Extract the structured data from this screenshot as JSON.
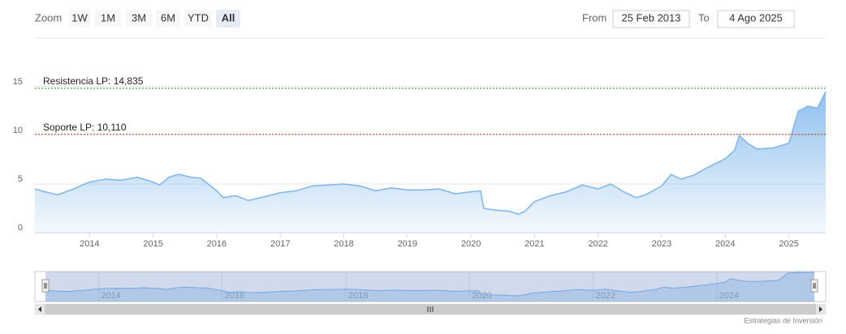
{
  "range_selector": {
    "zoom_label": "Zoom",
    "buttons": [
      "1W",
      "1M",
      "3M",
      "6M",
      "YTD",
      "All"
    ],
    "selected": 5,
    "from_label": "From",
    "from": "25 Feb 2013",
    "to_label": "To",
    "to": "4 Ago 2025"
  },
  "chart_data": {
    "type": "area",
    "color": "#7cb5ec",
    "xlim": [
      2013.14,
      2025.58
    ],
    "xticks": [
      2014,
      2015,
      2016,
      2017,
      2018,
      2019,
      2020,
      2021,
      2022,
      2023,
      2024,
      2025
    ],
    "ylim": [
      0,
      20
    ],
    "yticks": [
      0,
      5,
      10,
      15
    ],
    "grid": true,
    "plot_lines": [
      {
        "label": "Resistencia LP: 14,835",
        "value": 14.835,
        "color": "#2e8b2e"
      },
      {
        "label": "Soporte LP: 10,110",
        "value": 10.11,
        "color": "#c0392b"
      }
    ],
    "x": [
      2013.14,
      2013.3,
      2013.5,
      2013.75,
      2014.0,
      2014.25,
      2014.5,
      2014.75,
      2015.0,
      2015.1,
      2015.25,
      2015.4,
      2015.6,
      2015.75,
      2016.0,
      2016.1,
      2016.3,
      2016.5,
      2016.75,
      2017.0,
      2017.25,
      2017.5,
      2017.75,
      2018.0,
      2018.25,
      2018.5,
      2018.75,
      2019.0,
      2019.25,
      2019.5,
      2019.75,
      2020.0,
      2020.15,
      2020.2,
      2020.4,
      2020.6,
      2020.75,
      2020.85,
      2021.0,
      2021.25,
      2021.5,
      2021.75,
      2022.0,
      2022.2,
      2022.4,
      2022.6,
      2022.75,
      2023.0,
      2023.15,
      2023.3,
      2023.5,
      2023.75,
      2024.0,
      2024.15,
      2024.22,
      2024.35,
      2024.5,
      2024.75,
      2025.0,
      2025.15,
      2025.3,
      2025.45,
      2025.58
    ],
    "values": [
      4.5,
      4.2,
      3.9,
      4.5,
      5.2,
      5.5,
      5.4,
      5.7,
      5.2,
      4.9,
      5.7,
      6.0,
      5.7,
      5.6,
      4.3,
      3.6,
      3.8,
      3.3,
      3.7,
      4.1,
      4.3,
      4.8,
      4.9,
      5.0,
      4.8,
      4.3,
      4.6,
      4.4,
      4.4,
      4.5,
      4.0,
      4.2,
      4.3,
      2.5,
      2.3,
      2.2,
      1.9,
      2.2,
      3.2,
      3.8,
      4.2,
      4.9,
      4.5,
      5.0,
      4.2,
      3.6,
      3.9,
      4.8,
      6.0,
      5.5,
      5.9,
      6.8,
      7.6,
      8.5,
      10.0,
      9.2,
      8.6,
      8.7,
      9.2,
      12.5,
      13.0,
      12.8,
      14.5
    ]
  },
  "navigator": {
    "xticks": [
      2014,
      2016,
      2018,
      2020,
      2022,
      2024
    ]
  },
  "credits": "Estrategias de Inversión"
}
